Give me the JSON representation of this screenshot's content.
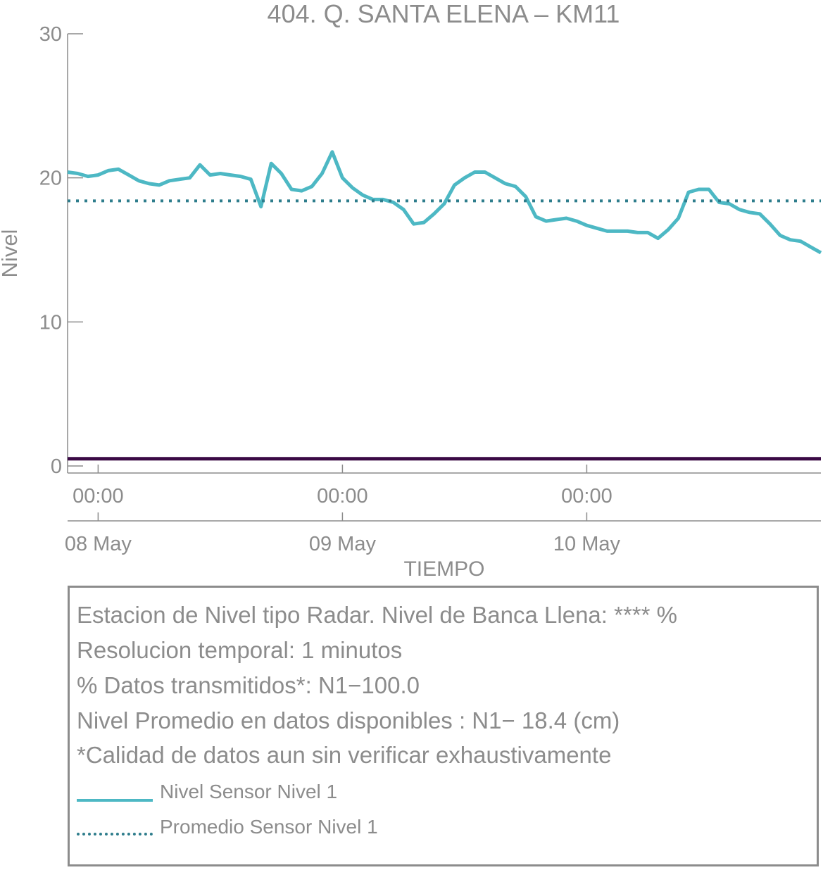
{
  "chart_data": {
    "type": "line",
    "title": "404. Q. SANTA ELENA – KM11",
    "xlabel": "TIEMPO",
    "ylabel": "Nivel",
    "ylim": [
      0,
      30
    ],
    "yticks": [
      0,
      10,
      20,
      30
    ],
    "xlim": [
      "2024-05-07T21:00",
      "2024-05-10T23:00"
    ],
    "xticks": [
      {
        "time": "00:00",
        "date": "08 May",
        "x": "2024-05-08T00:00"
      },
      {
        "time": "00:00",
        "date": "09 May",
        "x": "2024-05-09T00:00"
      },
      {
        "time": "00:00",
        "date": "10 May",
        "x": "2024-05-10T00:00"
      }
    ],
    "grid": false,
    "series": [
      {
        "name": "Nivel Sensor Nivel 1",
        "color": "#4db8c4",
        "style": "solid",
        "x": [
          "2024-05-07T21:00",
          "2024-05-07T22:00",
          "2024-05-07T23:00",
          "2024-05-08T00:00",
          "2024-05-08T01:00",
          "2024-05-08T02:00",
          "2024-05-08T03:00",
          "2024-05-08T04:00",
          "2024-05-08T05:00",
          "2024-05-08T06:00",
          "2024-05-08T07:00",
          "2024-05-08T08:00",
          "2024-05-08T09:00",
          "2024-05-08T10:00",
          "2024-05-08T11:00",
          "2024-05-08T12:00",
          "2024-05-08T13:00",
          "2024-05-08T14:00",
          "2024-05-08T15:00",
          "2024-05-08T16:00",
          "2024-05-08T17:00",
          "2024-05-08T18:00",
          "2024-05-08T19:00",
          "2024-05-08T20:00",
          "2024-05-08T21:00",
          "2024-05-08T22:00",
          "2024-05-08T23:00",
          "2024-05-09T00:00",
          "2024-05-09T01:00",
          "2024-05-09T02:00",
          "2024-05-09T03:00",
          "2024-05-09T04:00",
          "2024-05-09T05:00",
          "2024-05-09T06:00",
          "2024-05-09T07:00",
          "2024-05-09T08:00",
          "2024-05-09T09:00",
          "2024-05-09T10:00",
          "2024-05-09T11:00",
          "2024-05-09T12:00",
          "2024-05-09T13:00",
          "2024-05-09T14:00",
          "2024-05-09T15:00",
          "2024-05-09T16:00",
          "2024-05-09T17:00",
          "2024-05-09T18:00",
          "2024-05-09T19:00",
          "2024-05-09T20:00",
          "2024-05-09T21:00",
          "2024-05-09T22:00",
          "2024-05-09T23:00",
          "2024-05-10T00:00",
          "2024-05-10T01:00",
          "2024-05-10T02:00",
          "2024-05-10T03:00",
          "2024-05-10T04:00",
          "2024-05-10T05:00",
          "2024-05-10T06:00",
          "2024-05-10T07:00",
          "2024-05-10T08:00",
          "2024-05-10T09:00",
          "2024-05-10T10:00",
          "2024-05-10T11:00",
          "2024-05-10T12:00",
          "2024-05-10T13:00",
          "2024-05-10T14:00",
          "2024-05-10T15:00",
          "2024-05-10T16:00",
          "2024-05-10T17:00",
          "2024-05-10T18:00",
          "2024-05-10T19:00",
          "2024-05-10T20:00",
          "2024-05-10T21:00",
          "2024-05-10T22:00",
          "2024-05-10T23:00"
        ],
        "y": [
          20.4,
          20.3,
          20.1,
          20.2,
          20.5,
          20.6,
          20.2,
          19.8,
          19.6,
          19.5,
          19.8,
          19.9,
          20.0,
          20.9,
          20.2,
          20.3,
          20.2,
          20.1,
          19.9,
          18.0,
          21.0,
          20.3,
          19.2,
          19.1,
          19.4,
          20.3,
          21.8,
          20.0,
          19.3,
          18.8,
          18.5,
          18.5,
          18.3,
          17.8,
          16.8,
          16.9,
          17.5,
          18.2,
          19.5,
          20.0,
          20.4,
          20.4,
          20.0,
          19.6,
          19.4,
          18.7,
          17.3,
          17.0,
          17.1,
          17.2,
          17.0,
          16.7,
          16.5,
          16.3,
          16.3,
          16.3,
          16.2,
          16.2,
          15.8,
          16.4,
          17.2,
          19.0,
          19.2,
          19.2,
          18.3,
          18.2,
          17.8,
          17.6,
          17.5,
          16.8,
          16.0,
          15.7,
          15.6,
          15.2,
          14.8
        ]
      },
      {
        "name": "Promedio Sensor Nivel 1",
        "color": "#2e7d8c",
        "style": "dotted",
        "value": 18.4
      },
      {
        "color": "#3b0a45",
        "style": "solid",
        "value": 0.5
      }
    ]
  },
  "info": {
    "line1": "Estacion de Nivel tipo Radar. Nivel de Banca Llena: **** %",
    "line2": "Resolucion temporal: 1 minutos",
    "line3": "% Datos transmitidos*: N1−100.0",
    "line4": "Nivel Promedio en datos disponibles : N1− 18.4 (cm)",
    "line5": "*Calidad de datos aun sin verificar exhaustivamente"
  },
  "legend": {
    "item1": "Nivel Sensor Nivel 1",
    "item2": "Promedio Sensor Nivel 1"
  }
}
